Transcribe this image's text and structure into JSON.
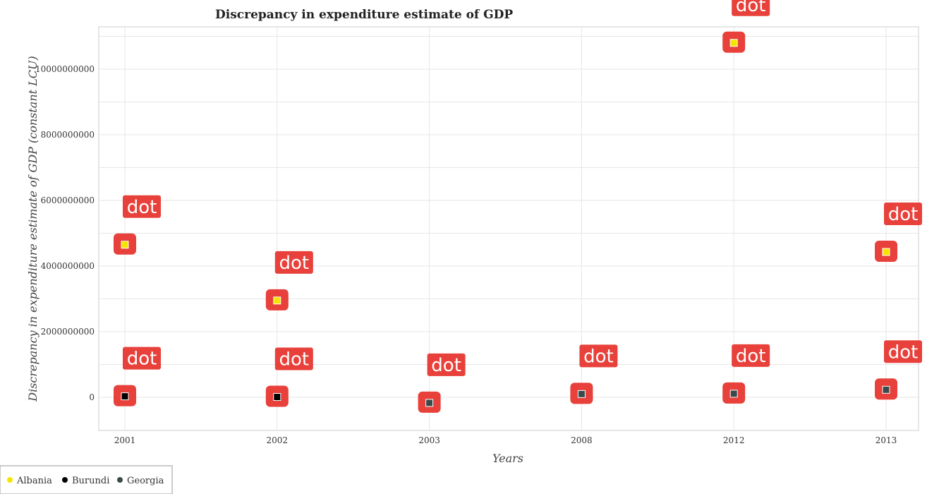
{
  "chart_data": {
    "type": "scatter",
    "title": "Discrepancy in expenditure estimate of GDP",
    "xlabel": "Years",
    "ylabel": "Discrepancy in expenditure estimate of GDP (constant LCU)",
    "categories": [
      "2001",
      "2002",
      "2003",
      "2008",
      "2012",
      "2013"
    ],
    "ylim": [
      0,
      12000000000
    ],
    "yticks": [
      0,
      2000000000,
      4000000000,
      6000000000,
      8000000000,
      10000000000
    ],
    "ytick_labels": [
      "0",
      "2000000000",
      "4000000000",
      "6000000000",
      "8000000000",
      "10000000000"
    ],
    "grid": true,
    "legend_position": "bottom-left",
    "point_label": "dot",
    "series": [
      {
        "name": "Albania",
        "color": "#f5e400",
        "values": [
          4650000000,
          2950000000,
          null,
          null,
          10800000000,
          4430000000
        ]
      },
      {
        "name": "Burundi",
        "color": "#000000",
        "values": [
          30000000,
          10000000,
          null,
          null,
          null,
          null
        ]
      },
      {
        "name": "Georgia",
        "color": "#3a4a4a",
        "values": [
          null,
          null,
          -170000000,
          100000000,
          110000000,
          230000000
        ]
      }
    ]
  }
}
